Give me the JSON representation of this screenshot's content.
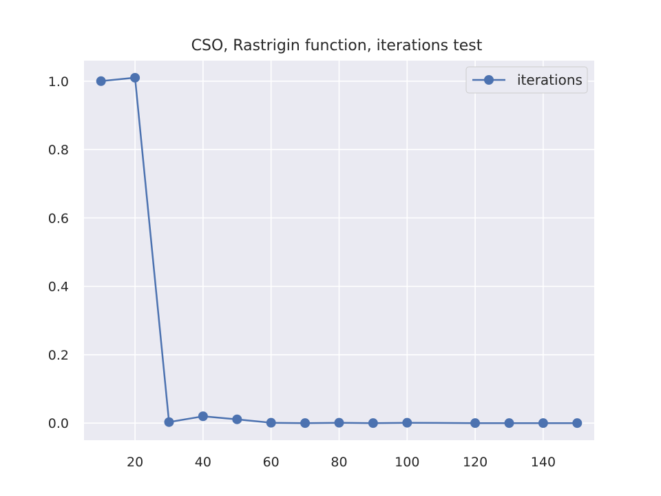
{
  "chart_data": {
    "type": "line",
    "title": "CSO, Rastrigin function, iterations test",
    "xlabel": "",
    "ylabel": "",
    "xlim": [
      5,
      155
    ],
    "ylim": [
      -0.05,
      1.06
    ],
    "xticks": [
      20,
      40,
      60,
      80,
      100,
      120,
      140
    ],
    "yticks": [
      0.0,
      0.2,
      0.4,
      0.6,
      0.8,
      1.0
    ],
    "xtick_labels": [
      "20",
      "40",
      "60",
      "80",
      "100",
      "120",
      "140"
    ],
    "ytick_labels": [
      "0.0",
      "0.2",
      "0.4",
      "0.6",
      "0.8",
      "1.0"
    ],
    "grid": true,
    "legend_position": "top-right",
    "series": [
      {
        "name": "iterations",
        "color": "#4c72b0",
        "marker": "circle",
        "x": [
          10,
          20,
          30,
          40,
          50,
          60,
          70,
          80,
          90,
          100,
          120,
          130,
          140,
          150
        ],
        "y": [
          1.0,
          1.01,
          0.003,
          0.02,
          0.011,
          0.001,
          0.0,
          0.001,
          0.0,
          0.001,
          0.0,
          0.0,
          0.0,
          0.0
        ]
      }
    ]
  }
}
